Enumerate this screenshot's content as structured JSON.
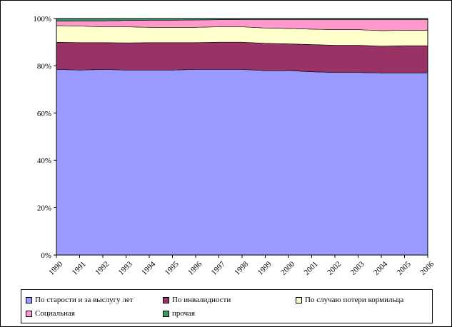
{
  "chart_data": {
    "type": "area",
    "stacked": true,
    "percent": true,
    "x": [
      "1990",
      "1991",
      "1992",
      "1993",
      "1994",
      "1995",
      "1996",
      "1997",
      "1998",
      "1999",
      "2000",
      "2001",
      "2002",
      "2003",
      "2004",
      "2005",
      "2006"
    ],
    "yticks": [
      "0%",
      "20%",
      "40%",
      "60%",
      "80%",
      "100%"
    ],
    "ylim": [
      0,
      100
    ],
    "grid": false,
    "legend_position": "bottom",
    "series": [
      {
        "name": "По старости и за выслугу лет",
        "color": "#9999FF",
        "values": [
          78.5,
          78.2,
          78.5,
          78.2,
          78.2,
          78.2,
          78.5,
          78.5,
          78.5,
          78.0,
          78.0,
          77.5,
          77.2,
          77.2,
          77.0,
          77.0,
          77.0
        ]
      },
      {
        "name": "По инвалидности",
        "color": "#993366",
        "values": [
          11.5,
          11.6,
          11.3,
          11.5,
          11.6,
          11.6,
          11.3,
          11.5,
          11.5,
          11.5,
          11.3,
          11.5,
          11.5,
          11.5,
          11.3,
          11.5,
          11.5
        ]
      },
      {
        "name": "По случаю потери кормильца",
        "color": "#FFFFCC",
        "values": [
          7.0,
          7.0,
          6.7,
          6.8,
          6.5,
          6.5,
          6.5,
          6.5,
          6.5,
          6.5,
          6.5,
          6.5,
          6.6,
          6.6,
          6.6,
          6.5,
          6.5
        ]
      },
      {
        "name": "Социальная",
        "color": "#FF99CC",
        "values": [
          1.9,
          2.2,
          2.5,
          2.7,
          3.0,
          3.0,
          3.1,
          3.0,
          3.1,
          3.6,
          3.8,
          4.1,
          4.3,
          4.3,
          4.7,
          4.6,
          4.6
        ]
      },
      {
        "name": "прочая",
        "color": "#339966",
        "values": [
          1.1,
          1.0,
          1.0,
          0.8,
          0.7,
          0.7,
          0.6,
          0.5,
          0.4,
          0.4,
          0.4,
          0.4,
          0.4,
          0.4,
          0.4,
          0.4,
          0.4
        ]
      }
    ]
  }
}
